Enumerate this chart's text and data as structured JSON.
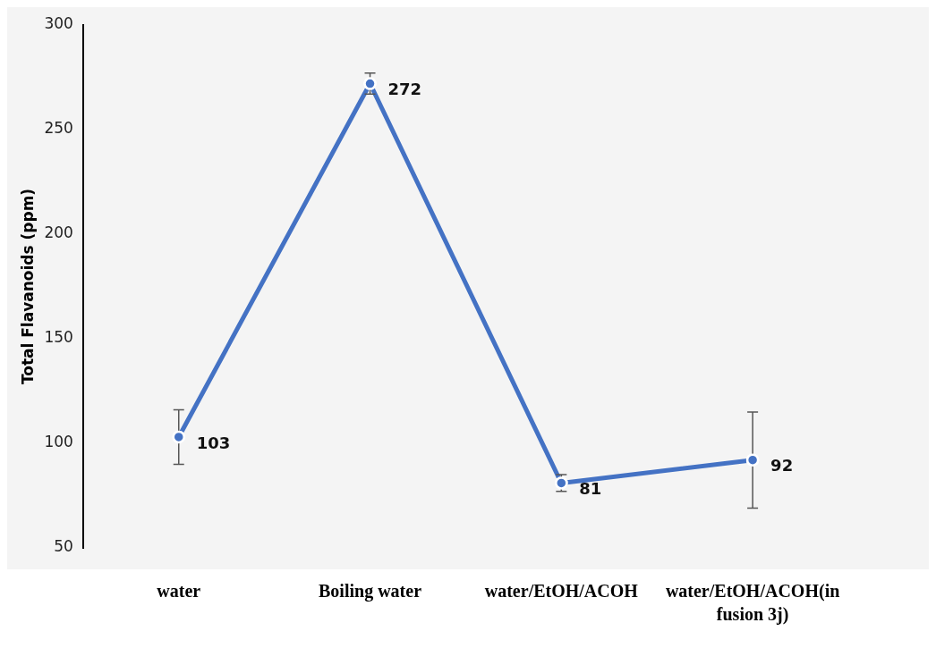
{
  "chart_data": {
    "type": "line",
    "ylabel": "Total Flavanoids (ppm)",
    "categories": [
      "water",
      "Boiling water",
      "water/EtOH/ACOH",
      "water/EtOH/ACOH(in fusion 3j)"
    ],
    "series": [
      {
        "color": "#4472c4",
        "values": [
          103,
          272,
          81,
          92
        ],
        "errors": [
          13,
          5,
          4,
          23
        ]
      }
    ],
    "ylim": [
      50,
      300
    ],
    "yticks": [
      50,
      100,
      150,
      200,
      250,
      300
    ],
    "grid": false,
    "legend": false,
    "marker": "circle",
    "line_style": "solid",
    "data_labels": true
  }
}
